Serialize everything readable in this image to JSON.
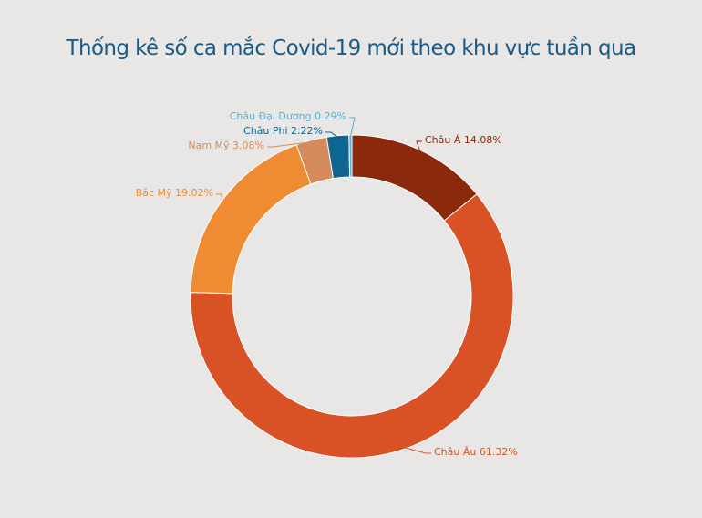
{
  "chart_data": {
    "type": "pie",
    "title": "Thống kê số ca mắc Covid-19 mới theo khu vực tuần qua",
    "slices": [
      {
        "label": "Châu Á 14.08%",
        "value": 14.08,
        "color": "#8b290c"
      },
      {
        "label": "Châu Âu 61.32%",
        "value": 61.32,
        "color": "#d95226"
      },
      {
        "label": "Bắc Mỹ 19.02%",
        "value": 19.02,
        "color": "#ee8b33"
      },
      {
        "label": "Nam Mỹ 3.08%",
        "value": 3.08,
        "color": "#d58a5b"
      },
      {
        "label": "Châu Phi  2.22%",
        "value": 2.22,
        "color": "#0f6591"
      },
      {
        "label": "Châu Đại Dương 0.29%",
        "value": 0.29,
        "color": "#5daed7"
      }
    ],
    "donut": true,
    "legend": "none"
  }
}
